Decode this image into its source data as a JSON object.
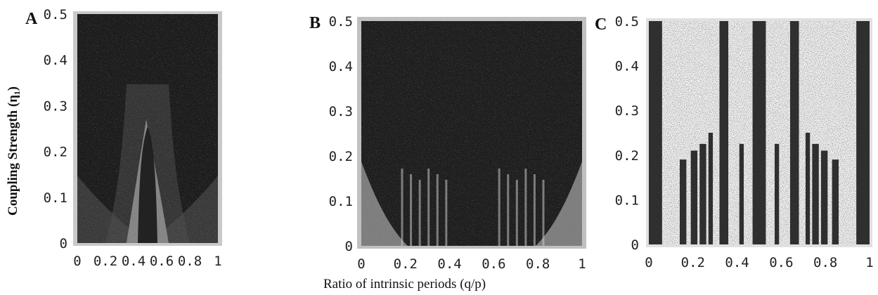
{
  "figure": {
    "ylabel": "Coupling Strength (η₁)",
    "xlabel": "Ratio of intrinsic periods (q/p)"
  },
  "chart_data": [
    {
      "type": "heatmap",
      "panel_label": "A",
      "xlim": [
        0,
        1
      ],
      "ylim": [
        0,
        0.5
      ],
      "x_ticks": [
        "0",
        "0.2",
        "0.4",
        "0.6",
        "0.8",
        "1"
      ],
      "y_ticks": [
        "0",
        "0.1",
        "0.2",
        "0.3",
        "0.4",
        "0.5"
      ],
      "title": "",
      "grid": false
    },
    {
      "type": "heatmap",
      "panel_label": "B",
      "xlim": [
        0,
        1
      ],
      "ylim": [
        0,
        0.5
      ],
      "x_ticks": [
        "0",
        "0.2",
        "0.4",
        "0.6",
        "0.8",
        "1"
      ],
      "y_ticks": [
        "0",
        "0.1",
        "0.2",
        "0.3",
        "0.4",
        "0.5"
      ],
      "title": "",
      "grid": false
    },
    {
      "type": "heatmap",
      "panel_label": "C",
      "xlim": [
        0,
        1
      ],
      "ylim": [
        0,
        0.5
      ],
      "x_ticks": [
        "0",
        "0.2",
        "0.4",
        "0.6",
        "0.8",
        "1"
      ],
      "y_ticks": [
        "0",
        "0.1",
        "0.2",
        "0.3",
        "0.4",
        "0.5"
      ],
      "title": "",
      "grid": false
    }
  ],
  "colors": {
    "dark": "#1a1a1a",
    "light": "#f2f2f2",
    "frame": "#b5b5b5"
  }
}
